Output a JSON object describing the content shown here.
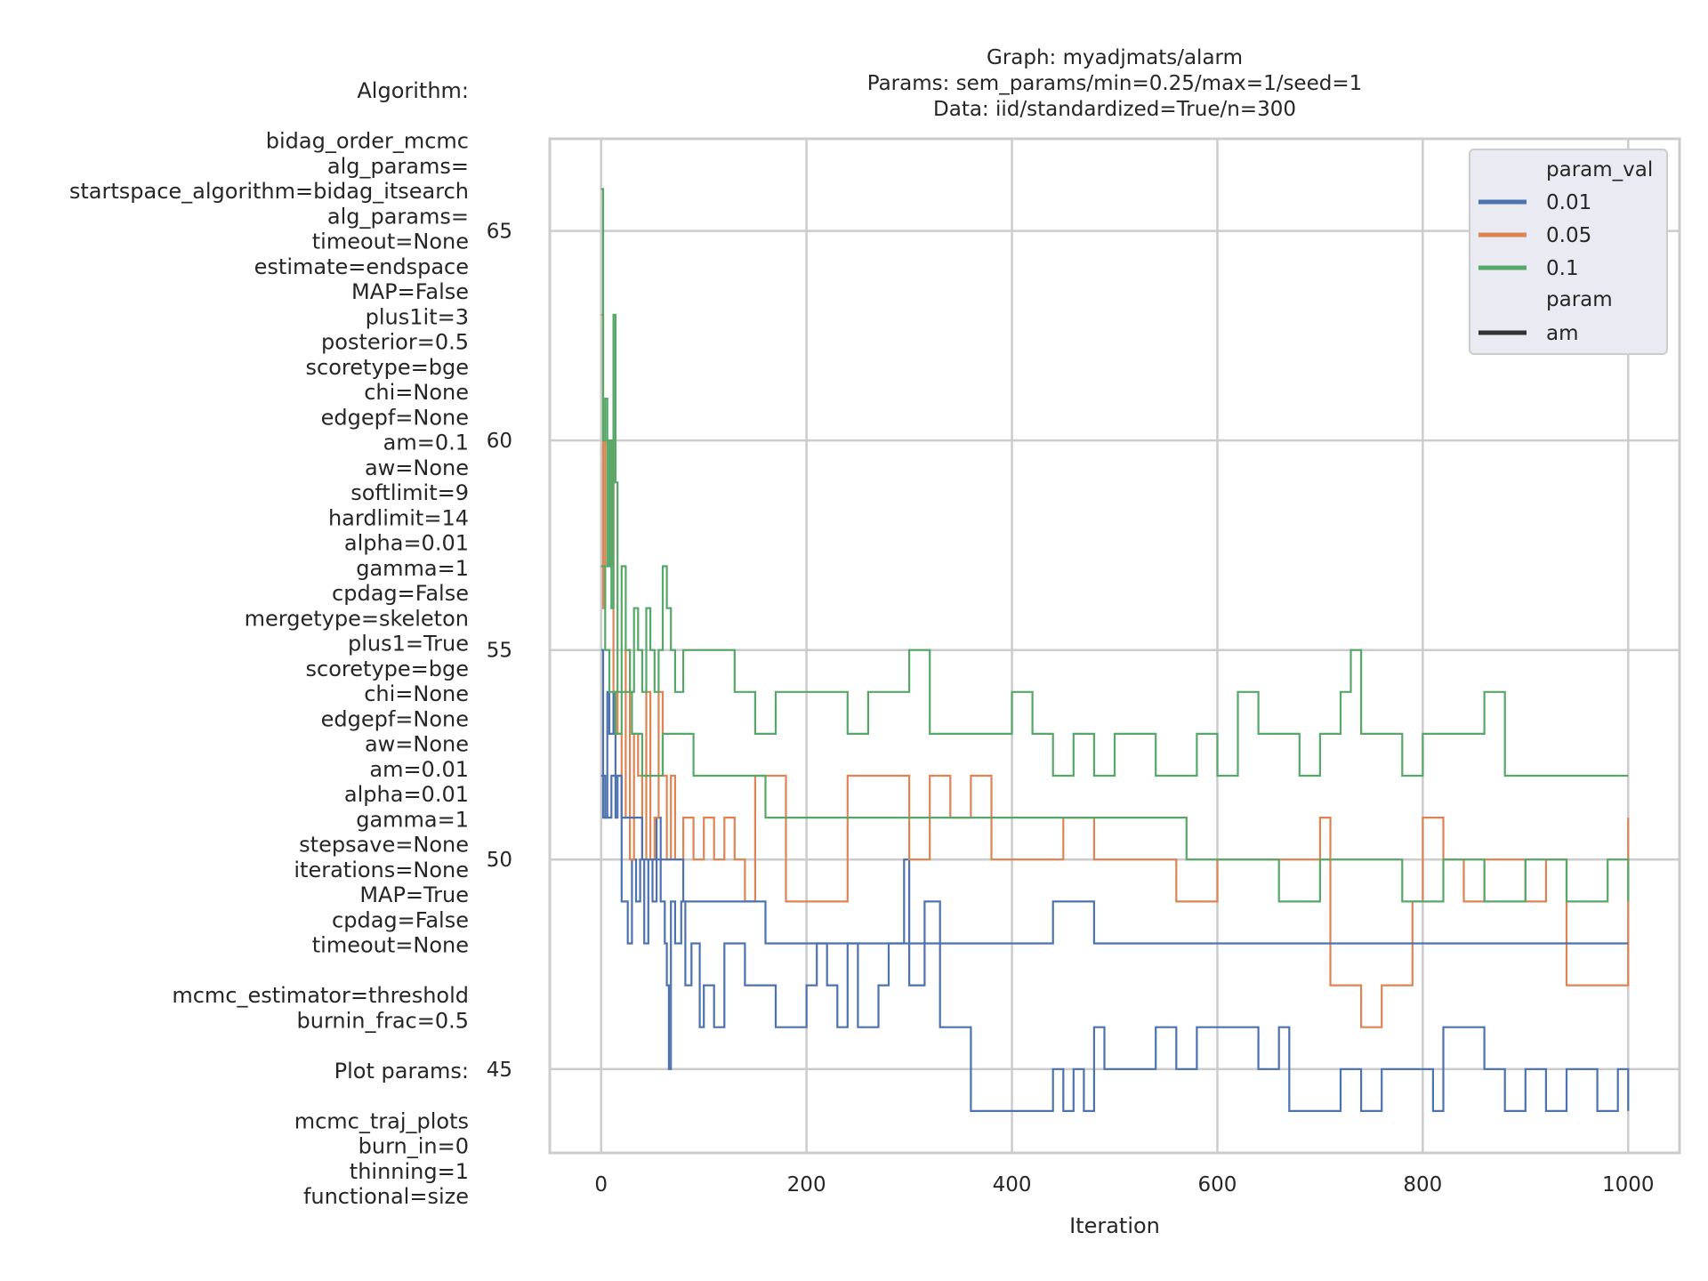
{
  "title_lines": [
    "Graph: myadjmats/alarm",
    "Params: sem_params/min=0.25/max=1/seed=1",
    "Data: iid/standardized=True/n=300"
  ],
  "side_text": [
    "Algorithm:",
    "",
    "bidag_order_mcmc",
    "alg_params=",
    "startspace_algorithm=bidag_itsearch",
    "alg_params=",
    "timeout=None",
    "estimate=endspace",
    "MAP=False",
    "plus1it=3",
    "posterior=0.5",
    "scoretype=bge",
    "chi=None",
    "edgepf=None",
    "am=0.1",
    "aw=None",
    "softlimit=9",
    "hardlimit=14",
    "alpha=0.01",
    "gamma=1",
    "cpdag=False",
    "mergetype=skeleton",
    "plus1=True",
    "scoretype=bge",
    "chi=None",
    "edgepf=None",
    "aw=None",
    "am=0.01",
    "alpha=0.01",
    "gamma=1",
    "stepsave=None",
    "iterations=None",
    "MAP=True",
    "cpdag=False",
    "timeout=None",
    "",
    "mcmc_estimator=threshold",
    "burnin_frac=0.5",
    "",
    "Plot params:",
    "",
    "mcmc_traj_plots",
    "burn_in=0",
    "thinning=1",
    "functional=size"
  ],
  "chart_data": {
    "type": "line",
    "xlabel": "Iteration",
    "ylabel": "",
    "xlim": [
      -50,
      1050
    ],
    "ylim": [
      43,
      67.2
    ],
    "xticks": [
      0,
      200,
      400,
      600,
      800,
      1000
    ],
    "yticks": [
      45,
      50,
      55,
      60,
      65
    ],
    "grid": true,
    "legend": {
      "placement": "top-right",
      "title": "param_val",
      "entries": [
        "0.01",
        "0.05",
        "0.1"
      ],
      "subtitle": "param",
      "style_entries": [
        "am"
      ]
    },
    "series": [
      {
        "name": "0.01",
        "color": "#4c72b0",
        "points": [
          [
            0,
            55
          ],
          [
            2,
            51
          ],
          [
            6,
            54
          ],
          [
            8,
            53
          ],
          [
            12,
            54
          ],
          [
            14,
            51
          ],
          [
            16,
            52
          ],
          [
            20,
            49
          ],
          [
            26,
            48
          ],
          [
            30,
            50
          ],
          [
            34,
            49
          ],
          [
            38,
            50
          ],
          [
            42,
            48
          ],
          [
            46,
            50
          ],
          [
            50,
            49
          ],
          [
            54,
            51
          ],
          [
            58,
            49
          ],
          [
            62,
            48
          ],
          [
            64,
            47
          ],
          [
            66,
            45
          ],
          [
            68,
            49
          ],
          [
            72,
            48
          ],
          [
            78,
            49
          ],
          [
            82,
            47
          ],
          [
            88,
            48
          ],
          [
            96,
            46
          ],
          [
            100,
            47
          ],
          [
            110,
            46
          ],
          [
            120,
            48
          ],
          [
            140,
            47
          ],
          [
            160,
            47
          ],
          [
            170,
            46
          ],
          [
            180,
            46
          ],
          [
            200,
            47
          ],
          [
            210,
            48
          ],
          [
            220,
            47
          ],
          [
            230,
            46
          ],
          [
            240,
            48
          ],
          [
            250,
            46
          ],
          [
            270,
            47
          ],
          [
            280,
            48
          ],
          [
            295,
            50
          ],
          [
            300,
            47
          ],
          [
            315,
            49
          ],
          [
            330,
            46
          ],
          [
            350,
            46
          ],
          [
            360,
            44
          ],
          [
            400,
            44
          ],
          [
            440,
            45
          ],
          [
            450,
            44
          ],
          [
            460,
            45
          ],
          [
            470,
            44
          ],
          [
            480,
            46
          ],
          [
            490,
            45
          ],
          [
            520,
            45
          ],
          [
            540,
            46
          ],
          [
            560,
            45
          ],
          [
            580,
            46
          ],
          [
            620,
            46
          ],
          [
            640,
            45
          ],
          [
            660,
            46
          ],
          [
            670,
            44
          ],
          [
            720,
            45
          ],
          [
            740,
            44
          ],
          [
            760,
            45
          ],
          [
            780,
            45
          ],
          [
            800,
            45
          ],
          [
            810,
            44
          ],
          [
            820,
            46
          ],
          [
            840,
            46
          ],
          [
            860,
            45
          ],
          [
            880,
            44
          ],
          [
            900,
            45
          ],
          [
            920,
            44
          ],
          [
            940,
            45
          ],
          [
            960,
            45
          ],
          [
            970,
            44
          ],
          [
            990,
            45
          ],
          [
            1000,
            44
          ]
        ]
      },
      {
        "name": "0.05",
        "color": "#dd8452",
        "points": [
          [
            0,
            63
          ],
          [
            2,
            56
          ],
          [
            4,
            60
          ],
          [
            8,
            57
          ],
          [
            10,
            60
          ],
          [
            12,
            54
          ],
          [
            16,
            53
          ],
          [
            20,
            51
          ],
          [
            24,
            55
          ],
          [
            28,
            50
          ],
          [
            32,
            53
          ],
          [
            36,
            52
          ],
          [
            40,
            50
          ],
          [
            44,
            54
          ],
          [
            48,
            50
          ],
          [
            52,
            51
          ],
          [
            56,
            54
          ],
          [
            60,
            52
          ],
          [
            64,
            50
          ],
          [
            68,
            52
          ],
          [
            72,
            50
          ],
          [
            80,
            51
          ],
          [
            90,
            50
          ],
          [
            100,
            51
          ],
          [
            110,
            50
          ],
          [
            120,
            51
          ],
          [
            130,
            50
          ],
          [
            140,
            49
          ],
          [
            150,
            52
          ],
          [
            170,
            52
          ],
          [
            180,
            49
          ],
          [
            200,
            49
          ],
          [
            220,
            49
          ],
          [
            240,
            52
          ],
          [
            260,
            52
          ],
          [
            280,
            52
          ],
          [
            300,
            50
          ],
          [
            320,
            52
          ],
          [
            340,
            51
          ],
          [
            360,
            52
          ],
          [
            380,
            50
          ],
          [
            400,
            50
          ],
          [
            450,
            51
          ],
          [
            480,
            50
          ],
          [
            520,
            50
          ],
          [
            560,
            49
          ],
          [
            600,
            50
          ],
          [
            640,
            50
          ],
          [
            680,
            50
          ],
          [
            700,
            51
          ],
          [
            710,
            47
          ],
          [
            740,
            46
          ],
          [
            760,
            47
          ],
          [
            790,
            49
          ],
          [
            800,
            51
          ],
          [
            820,
            50
          ],
          [
            840,
            49
          ],
          [
            860,
            50
          ],
          [
            880,
            50
          ],
          [
            900,
            49
          ],
          [
            920,
            50
          ],
          [
            940,
            47
          ],
          [
            960,
            47
          ],
          [
            1000,
            51
          ]
        ]
      },
      {
        "name": "0.1",
        "color": "#55a868",
        "points": [
          [
            0,
            66
          ],
          [
            2,
            60
          ],
          [
            4,
            61
          ],
          [
            6,
            57
          ],
          [
            8,
            60
          ],
          [
            10,
            56
          ],
          [
            12,
            63
          ],
          [
            14,
            59
          ],
          [
            16,
            54
          ],
          [
            20,
            57
          ],
          [
            24,
            55
          ],
          [
            28,
            54
          ],
          [
            32,
            56
          ],
          [
            36,
            55
          ],
          [
            40,
            54
          ],
          [
            44,
            56
          ],
          [
            48,
            55
          ],
          [
            52,
            54
          ],
          [
            56,
            55
          ],
          [
            60,
            57
          ],
          [
            64,
            56
          ],
          [
            68,
            55
          ],
          [
            72,
            54
          ],
          [
            80,
            55
          ],
          [
            100,
            55
          ],
          [
            120,
            55
          ],
          [
            130,
            54
          ],
          [
            150,
            53
          ],
          [
            170,
            54
          ],
          [
            200,
            54
          ],
          [
            220,
            54
          ],
          [
            240,
            53
          ],
          [
            260,
            54
          ],
          [
            280,
            54
          ],
          [
            300,
            55
          ],
          [
            320,
            53
          ],
          [
            340,
            53
          ],
          [
            360,
            53
          ],
          [
            380,
            53
          ],
          [
            400,
            54
          ],
          [
            420,
            53
          ],
          [
            440,
            52
          ],
          [
            460,
            53
          ],
          [
            480,
            52
          ],
          [
            500,
            53
          ],
          [
            520,
            53
          ],
          [
            540,
            52
          ],
          [
            560,
            52
          ],
          [
            580,
            53
          ],
          [
            600,
            52
          ],
          [
            620,
            54
          ],
          [
            640,
            53
          ],
          [
            660,
            53
          ],
          [
            680,
            52
          ],
          [
            700,
            53
          ],
          [
            720,
            54
          ],
          [
            730,
            55
          ],
          [
            740,
            53
          ],
          [
            760,
            53
          ],
          [
            780,
            52
          ],
          [
            800,
            53
          ],
          [
            820,
            53
          ],
          [
            840,
            53
          ],
          [
            860,
            54
          ],
          [
            880,
            52
          ],
          [
            900,
            52
          ],
          [
            920,
            52
          ],
          [
            940,
            52
          ],
          [
            960,
            52
          ],
          [
            980,
            52
          ],
          [
            1000,
            52
          ]
        ]
      },
      {
        "name": "0.1",
        "color": "#55a868",
        "points": [
          [
            0,
            57
          ],
          [
            4,
            55
          ],
          [
            8,
            54
          ],
          [
            14,
            53
          ],
          [
            20,
            54
          ],
          [
            30,
            53
          ],
          [
            40,
            52
          ],
          [
            60,
            53
          ],
          [
            90,
            52
          ],
          [
            120,
            52
          ],
          [
            160,
            51
          ],
          [
            200,
            51
          ],
          [
            250,
            51
          ],
          [
            300,
            51
          ],
          [
            350,
            51
          ],
          [
            400,
            51
          ],
          [
            450,
            51
          ],
          [
            500,
            51
          ],
          [
            550,
            51
          ],
          [
            570,
            50
          ],
          [
            600,
            50
          ],
          [
            630,
            50
          ],
          [
            660,
            49
          ],
          [
            700,
            50
          ],
          [
            740,
            50
          ],
          [
            780,
            49
          ],
          [
            820,
            50
          ],
          [
            860,
            49
          ],
          [
            900,
            50
          ],
          [
            940,
            49
          ],
          [
            980,
            50
          ],
          [
            1000,
            49
          ]
        ]
      },
      {
        "name": "0.01",
        "color": "#4c72b0",
        "points": [
          [
            0,
            52
          ],
          [
            4,
            51
          ],
          [
            10,
            52
          ],
          [
            20,
            51
          ],
          [
            40,
            50
          ],
          [
            60,
            50
          ],
          [
            80,
            49
          ],
          [
            100,
            49
          ],
          [
            130,
            49
          ],
          [
            160,
            48
          ],
          [
            200,
            48
          ],
          [
            240,
            48
          ],
          [
            280,
            48
          ],
          [
            320,
            48
          ],
          [
            360,
            48
          ],
          [
            400,
            48
          ],
          [
            440,
            49
          ],
          [
            480,
            48
          ],
          [
            520,
            48
          ],
          [
            560,
            48
          ],
          [
            600,
            48
          ],
          [
            640,
            48
          ],
          [
            680,
            48
          ],
          [
            720,
            48
          ],
          [
            760,
            48
          ],
          [
            800,
            48
          ],
          [
            840,
            48
          ],
          [
            880,
            48
          ],
          [
            920,
            48
          ],
          [
            960,
            48
          ],
          [
            1000,
            48
          ]
        ]
      }
    ]
  }
}
